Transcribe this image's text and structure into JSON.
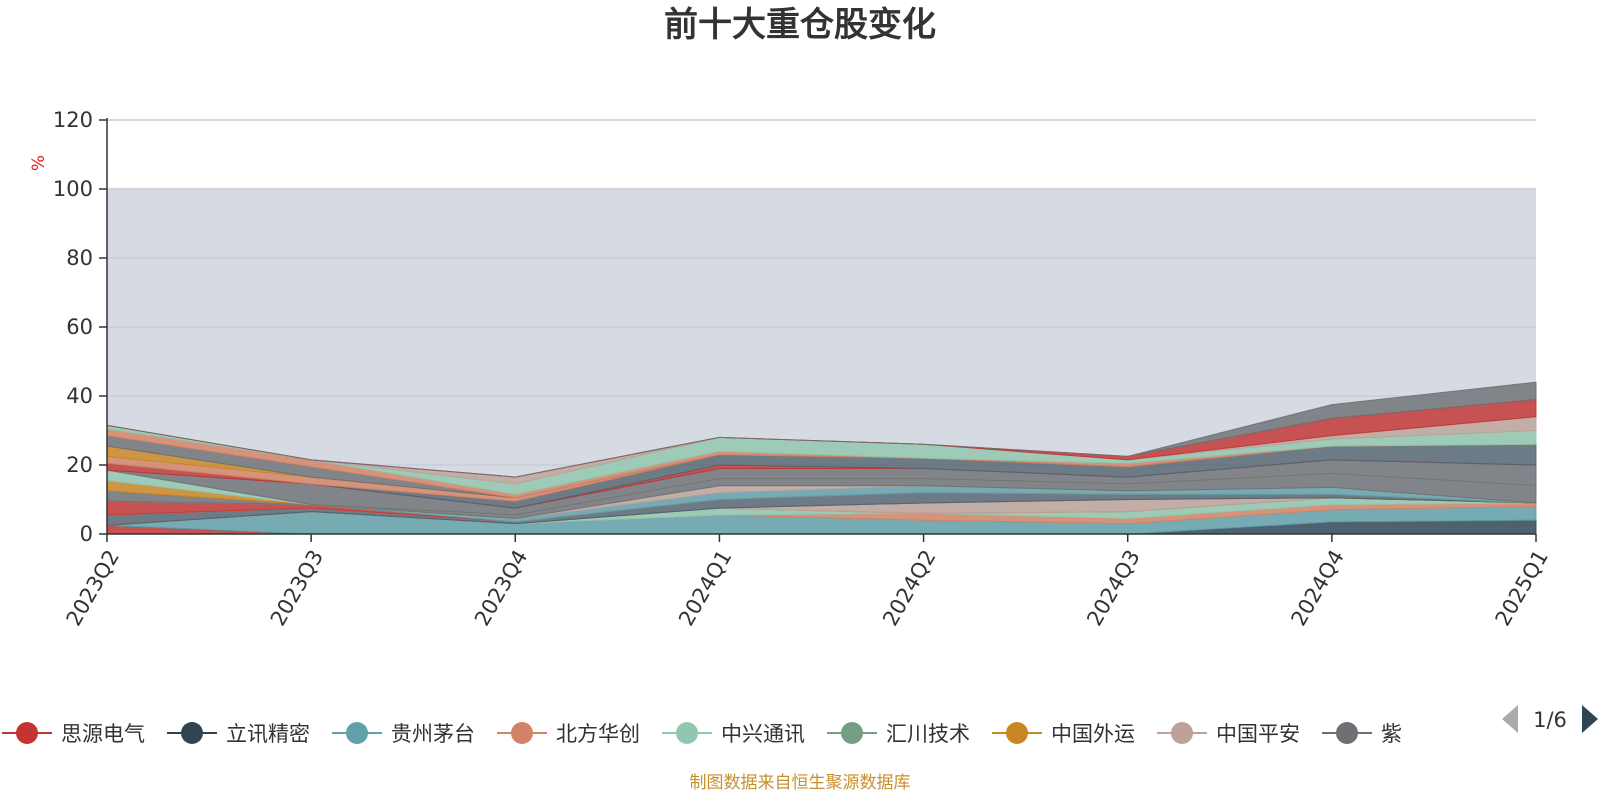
{
  "chart_data": {
    "type": "area",
    "stacked": true,
    "title": "前十大重仓股变化",
    "unit": "%",
    "categories": [
      "2023Q2",
      "2023Q3",
      "2023Q4",
      "2024Q1",
      "2024Q2",
      "2024Q3",
      "2024Q4",
      "2025Q1"
    ],
    "ylim": [
      0,
      120
    ],
    "yticks": [
      0,
      20,
      40,
      60,
      80,
      100,
      120
    ],
    "grid": true,
    "background_band": [
      0,
      100
    ],
    "legend_placement": "bottom",
    "series": [
      {
        "name": "思源电气",
        "color": "#c23531",
        "values": [
          2.5,
          0,
          0,
          0,
          0,
          0,
          0,
          0
        ]
      },
      {
        "name": "立讯精密",
        "color": "#2f4554",
        "values": [
          0,
          0,
          0,
          0,
          0,
          0,
          3.5,
          4
        ]
      },
      {
        "name": "贵州茅台",
        "color": "#61a0a8",
        "values": [
          0,
          6.5,
          3,
          5.5,
          4,
          3,
          3.5,
          4
        ]
      },
      {
        "name": "北方华创",
        "color": "#d48265",
        "values": [
          0,
          0,
          0,
          0,
          2,
          1.5,
          1.5,
          1
        ]
      },
      {
        "name": "中兴通讯",
        "color": "#91c7ae",
        "values": [
          0,
          0,
          0,
          2,
          0,
          2,
          2,
          0
        ]
      },
      {
        "name": "汇川技术",
        "color": "#749f83",
        "values": [
          0,
          0,
          0,
          0,
          0,
          0,
          0,
          0
        ]
      },
      {
        "name": "中国外运",
        "color": "#ca8622",
        "values": [
          0,
          0,
          0,
          0,
          0,
          0,
          0,
          0
        ]
      },
      {
        "name": "中国平安",
        "color": "#bda29a",
        "values": [
          0,
          0,
          0,
          0,
          3,
          3.5,
          0,
          0
        ]
      },
      {
        "name": "",
        "color": "#6e7074",
        "values": [
          0,
          0,
          0,
          0,
          0,
          0,
          0,
          0
        ]
      },
      {
        "name": "",
        "color": "#546570",
        "values": [
          3,
          1,
          0.5,
          2.5,
          3,
          1.5,
          1,
          0
        ]
      },
      {
        "name": "",
        "color": "#c4ccd3",
        "values": [
          0,
          0,
          0,
          0,
          0,
          0,
          0,
          0
        ]
      },
      {
        "name": "",
        "color": "#c23531",
        "values": [
          4,
          1,
          0,
          0,
          0,
          0,
          0,
          0
        ]
      },
      {
        "name": "",
        "color": "#61a0a8",
        "values": [
          0,
          0,
          1,
          2,
          2,
          1,
          2,
          0
        ]
      },
      {
        "name": "",
        "color": "#bda29a",
        "values": [
          0,
          0,
          0,
          2,
          0,
          0,
          0,
          0
        ]
      },
      {
        "name": "",
        "color": "#6e7074",
        "values": [
          3,
          0,
          1,
          2,
          2,
          2,
          4,
          5
        ]
      },
      {
        "name": "",
        "color": "#ca8622",
        "values": [
          3,
          0,
          0,
          0,
          0,
          0,
          0,
          0
        ]
      },
      {
        "name": "",
        "color": "#91c7ae",
        "values": [
          3,
          0,
          0,
          0,
          0,
          0,
          0,
          0
        ]
      },
      {
        "name": "",
        "color": "#6e7074",
        "values": [
          0,
          6,
          2,
          3,
          3,
          2,
          4,
          6
        ]
      },
      {
        "name": "",
        "color": "#c23531",
        "values": [
          2,
          0,
          0,
          1,
          0,
          0,
          0,
          0
        ]
      },
      {
        "name": "",
        "color": "#546570",
        "values": [
          0,
          0,
          2,
          3,
          3,
          3,
          4,
          6
        ]
      },
      {
        "name": "",
        "color": "#d48265",
        "values": [
          2,
          2,
          1,
          0,
          0,
          0,
          0,
          0
        ]
      },
      {
        "name": "",
        "color": "#ca8622",
        "values": [
          3,
          0,
          0,
          0,
          0,
          0,
          0,
          0
        ]
      },
      {
        "name": "",
        "color": "#6e7074",
        "values": [
          3,
          3,
          0,
          0,
          0,
          0,
          0,
          0
        ]
      },
      {
        "name": "",
        "color": "#d48265",
        "values": [
          2,
          2,
          1,
          1,
          0,
          1,
          0,
          0
        ]
      },
      {
        "name": "",
        "color": "#91c7ae",
        "values": [
          1,
          0,
          3,
          4,
          4,
          1,
          2,
          4
        ]
      },
      {
        "name": "",
        "color": "#bda29a",
        "values": [
          0,
          0,
          2,
          0,
          0,
          0,
          1,
          4
        ]
      },
      {
        "name": "",
        "color": "#c23531",
        "values": [
          0,
          0,
          0,
          0,
          0,
          1,
          5,
          5
        ]
      },
      {
        "name": "",
        "color": "#6e7074",
        "values": [
          0,
          0,
          0,
          0,
          0,
          0,
          4,
          5
        ]
      }
    ]
  },
  "legend": {
    "items": [
      {
        "name": "思源电气",
        "color": "#c23531"
      },
      {
        "name": "立讯精密",
        "color": "#2f4554"
      },
      {
        "name": "贵州茅台",
        "color": "#61a0a8"
      },
      {
        "name": "北方华创",
        "color": "#d48265"
      },
      {
        "name": "中兴通讯",
        "color": "#91c7ae"
      },
      {
        "name": "汇川技术",
        "color": "#749f83"
      },
      {
        "name": "中国外运",
        "color": "#ca8622"
      },
      {
        "name": "中国平安",
        "color": "#bda29a"
      },
      {
        "name": "紫",
        "color": "#6e7074"
      }
    ],
    "page": "1/6",
    "prev_icon": "triangle-left-icon",
    "next_icon": "triangle-right-icon"
  },
  "source_note": "制图数据来自恒生聚源数据库"
}
